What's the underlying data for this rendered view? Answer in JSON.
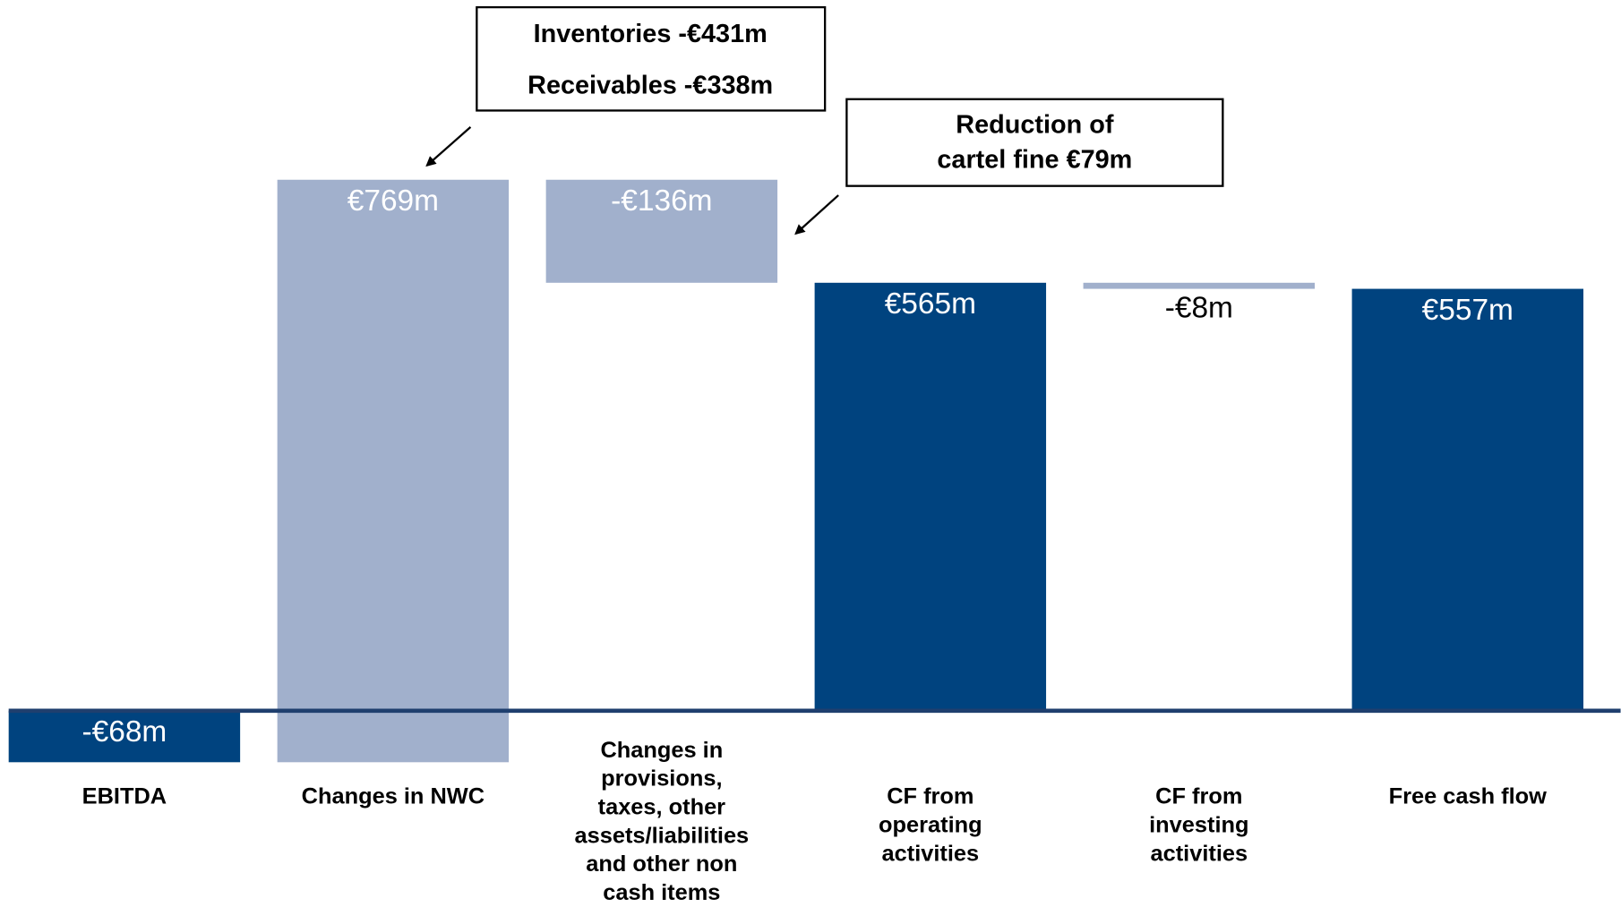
{
  "chart_data": {
    "type": "waterfall",
    "categories": [
      "EBITDA",
      "Changes in NWC",
      "Changes in provisions, taxes, other assets/liabilities and other non cash items",
      "CF from operating activities",
      "CF from investing activities",
      "Free cash flow"
    ],
    "values": [
      -68,
      769,
      -136,
      565,
      -8,
      557
    ],
    "value_labels": [
      "-€68m",
      "€769m",
      "-€136m",
      "€565m",
      "-€8m",
      "€557m"
    ],
    "measure": [
      "absolute",
      "relative",
      "relative",
      "total",
      "relative",
      "total"
    ],
    "colors": [
      "#00437f",
      "#a1b0cc",
      "#a1b0cc",
      "#00437f",
      "#a1b0cc",
      "#00437f"
    ],
    "annotations": [
      {
        "text": [
          "Inventories -€431m",
          "Receivables -€338m"
        ]
      },
      {
        "text": [
          "Reduction of",
          "cartel fine €79m"
        ]
      }
    ]
  }
}
